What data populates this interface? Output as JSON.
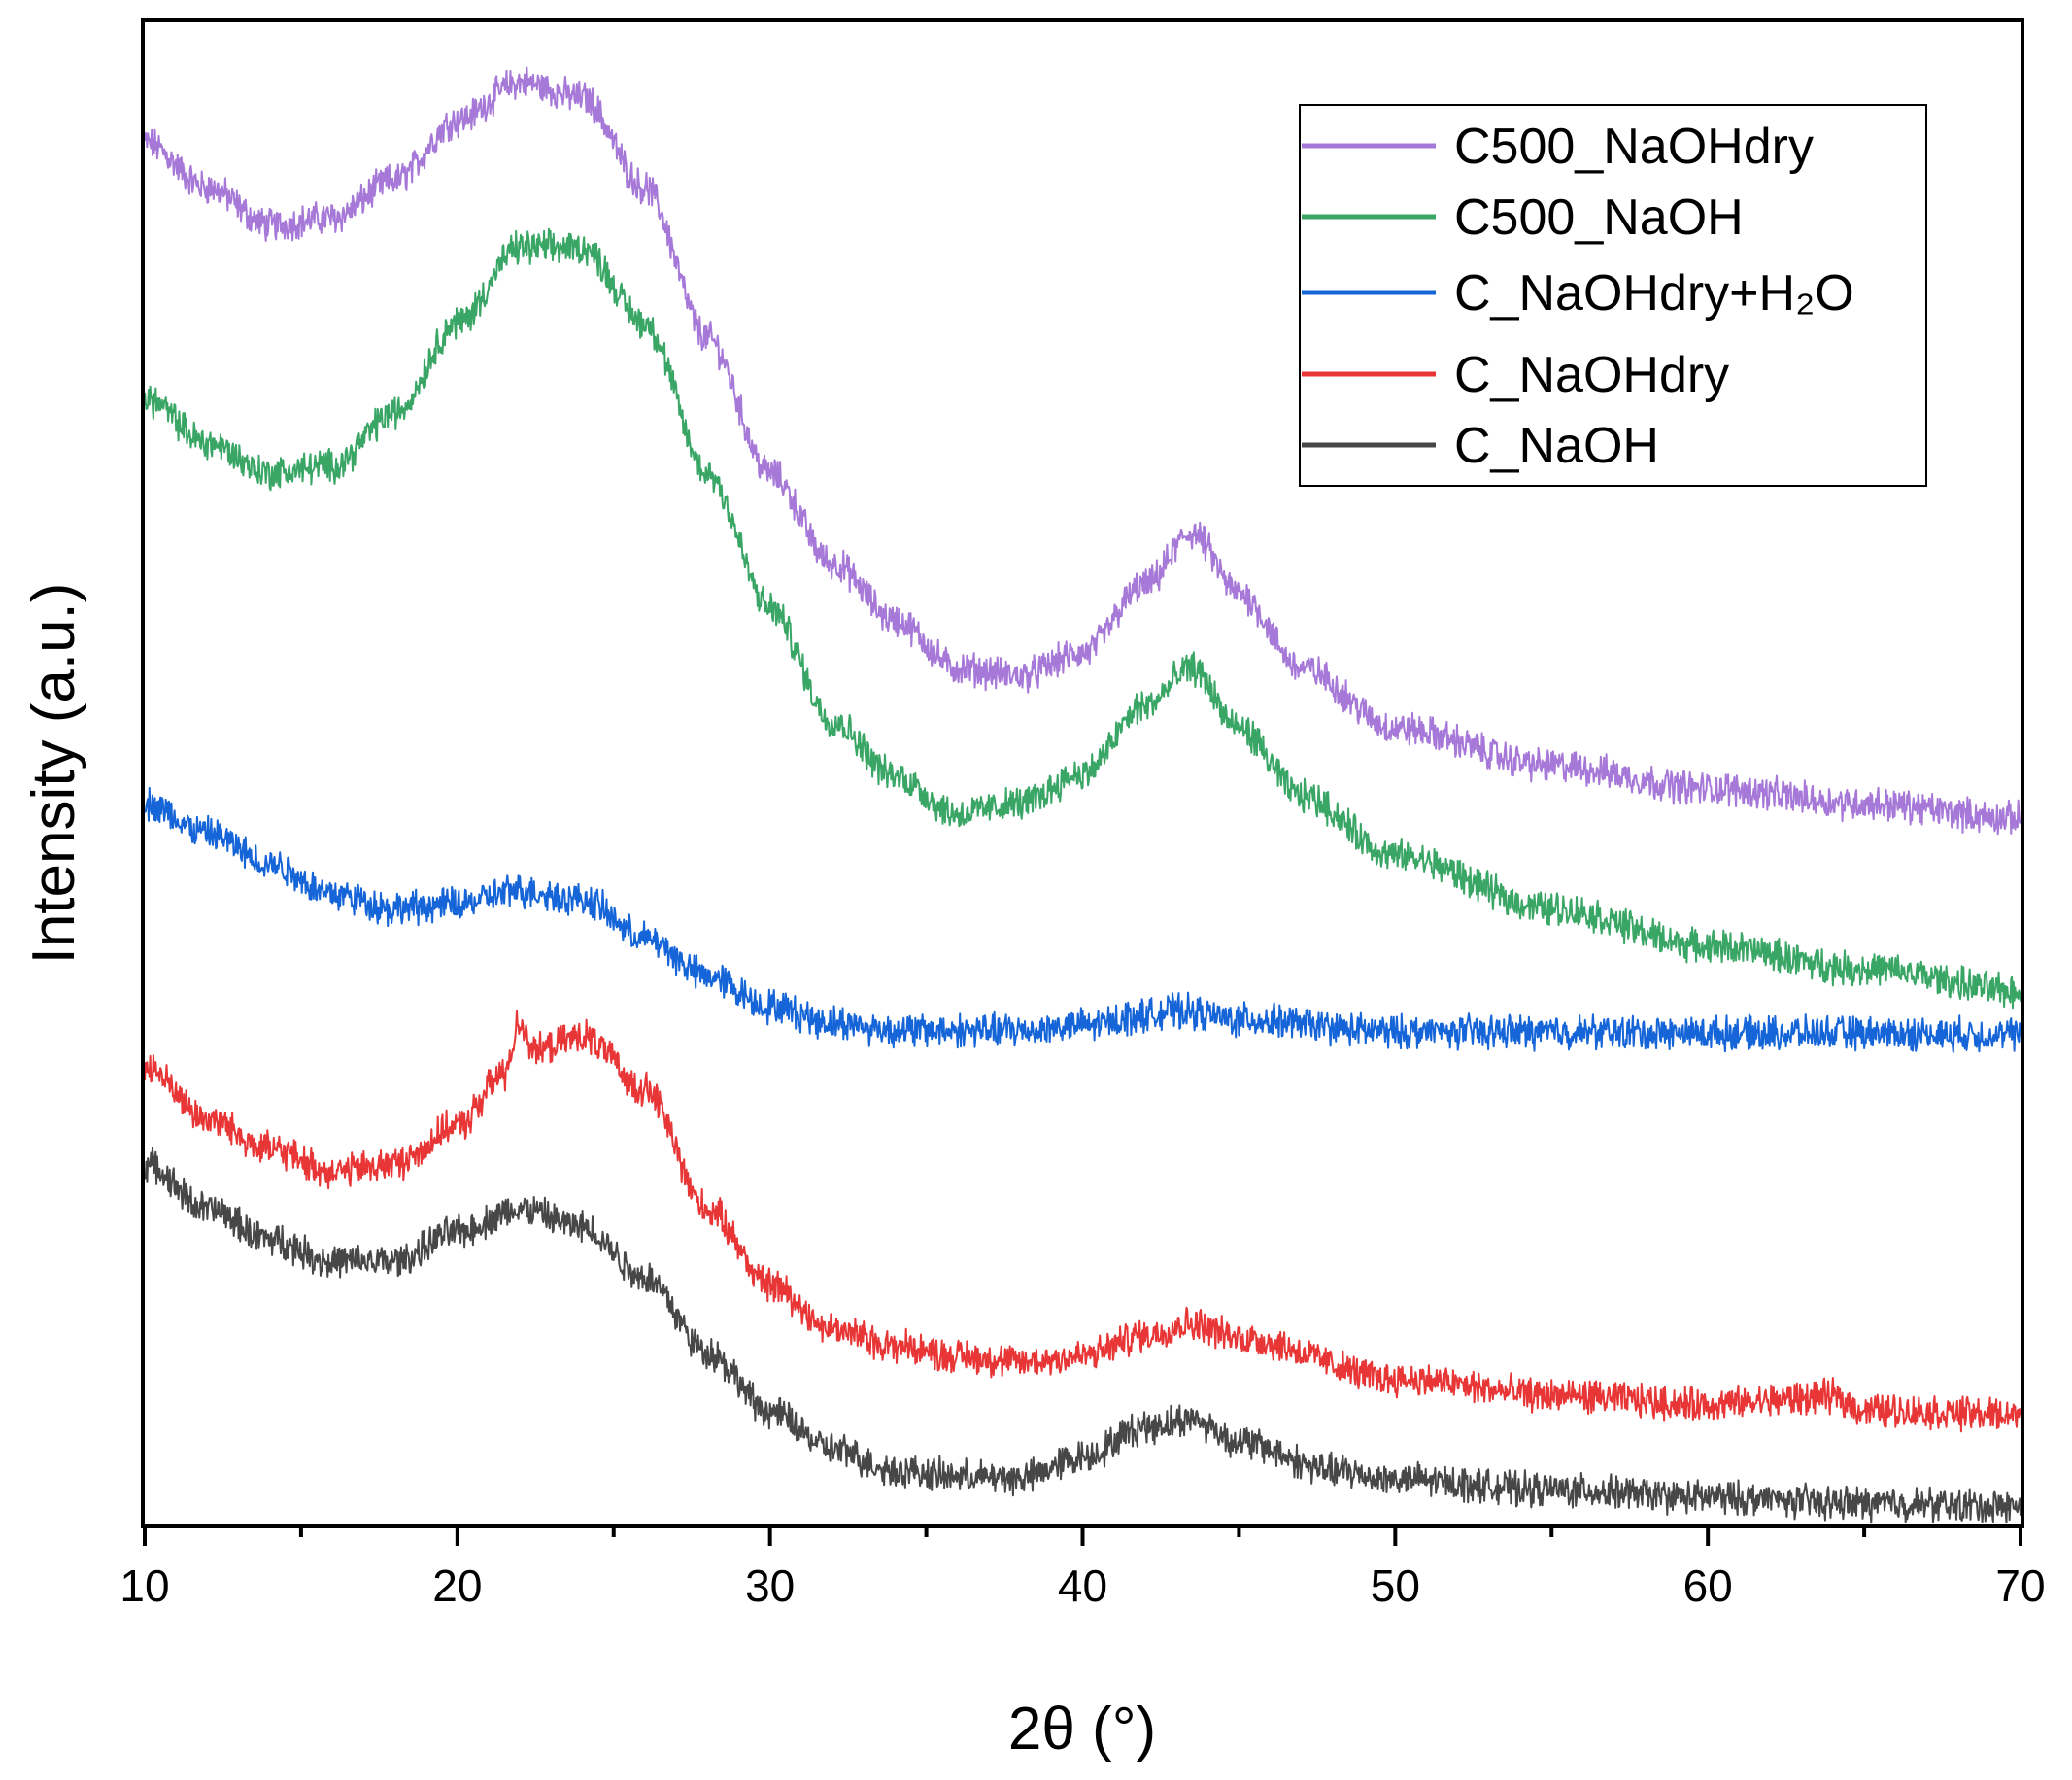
{
  "chart_data": {
    "type": "line",
    "title": "",
    "xlabel": "2θ (°)",
    "ylabel": "Intensity (a.u.)",
    "xlim": [
      10,
      70
    ],
    "ylim": [
      0,
      100
    ],
    "xticks": [
      10,
      20,
      30,
      40,
      50,
      60,
      70
    ],
    "yticks_shown": false,
    "legend_position": "top-right",
    "series": [
      {
        "name": "C500_NaOHdry",
        "color": "#a678d8",
        "points": [
          [
            10,
            92
          ],
          [
            12,
            89
          ],
          [
            14,
            86.5
          ],
          [
            16,
            87
          ],
          [
            18,
            89.5
          ],
          [
            20,
            93.5
          ],
          [
            22,
            96
          ],
          [
            24,
            95
          ],
          [
            26,
            89
          ],
          [
            28,
            79
          ],
          [
            30,
            70
          ],
          [
            32,
            64
          ],
          [
            34,
            60.2
          ],
          [
            36,
            57
          ],
          [
            38,
            56.5
          ],
          [
            40,
            58
          ],
          [
            42,
            62.5
          ],
          [
            43.5,
            66
          ],
          [
            45,
            62
          ],
          [
            47,
            57
          ],
          [
            50,
            53
          ],
          [
            55,
            50.5
          ],
          [
            60,
            49
          ],
          [
            65,
            48
          ],
          [
            70,
            47
          ]
        ]
      },
      {
        "name": "C500_NaOH",
        "color": "#3aa666",
        "points": [
          [
            10,
            75
          ],
          [
            12,
            72
          ],
          [
            14,
            70
          ],
          [
            16,
            70.5
          ],
          [
            18,
            74
          ],
          [
            20,
            80
          ],
          [
            22,
            85
          ],
          [
            24,
            85
          ],
          [
            26,
            80
          ],
          [
            28,
            70
          ],
          [
            30,
            61
          ],
          [
            32,
            53.5
          ],
          [
            34,
            49.8
          ],
          [
            36,
            47.3
          ],
          [
            38,
            48
          ],
          [
            40,
            50
          ],
          [
            42,
            54.5
          ],
          [
            43.5,
            57
          ],
          [
            45,
            53
          ],
          [
            47,
            48.5
          ],
          [
            50,
            44.5
          ],
          [
            55,
            41
          ],
          [
            60,
            38.5
          ],
          [
            65,
            37
          ],
          [
            70,
            35.5
          ]
        ]
      },
      {
        "name": "C_NaOHdry+H₂O",
        "color": "#1565d8",
        "points": [
          [
            10,
            48
          ],
          [
            12,
            46
          ],
          [
            14,
            44
          ],
          [
            16,
            42
          ],
          [
            18,
            41
          ],
          [
            20,
            41.3
          ],
          [
            22,
            42.2
          ],
          [
            24,
            41.6
          ],
          [
            26,
            39
          ],
          [
            28,
            36.5
          ],
          [
            30,
            34.5
          ],
          [
            32,
            33.4
          ],
          [
            34,
            32.9
          ],
          [
            36,
            32.9
          ],
          [
            38,
            32.9
          ],
          [
            40,
            33.2
          ],
          [
            42,
            33.9
          ],
          [
            43,
            34.2
          ],
          [
            45,
            33.6
          ],
          [
            50,
            32.8
          ],
          [
            55,
            32.8
          ],
          [
            60,
            32.7
          ],
          [
            65,
            32.7
          ],
          [
            70,
            32.6
          ]
        ]
      },
      {
        "name": "C_NaOHdry",
        "color": "#e83535",
        "points": [
          [
            10,
            30.5
          ],
          [
            12,
            27
          ],
          [
            14,
            25
          ],
          [
            16,
            23.5
          ],
          [
            18,
            24
          ],
          [
            20,
            26.5
          ],
          [
            21.5,
            30
          ],
          [
            22,
            33.5
          ],
          [
            22.5,
            31.5
          ],
          [
            24,
            32.5
          ],
          [
            26,
            29
          ],
          [
            28,
            21
          ],
          [
            30,
            16
          ],
          [
            32,
            13
          ],
          [
            34,
            11.9
          ],
          [
            36,
            11.2
          ],
          [
            38,
            10.8
          ],
          [
            40,
            11.2
          ],
          [
            42,
            12.6
          ],
          [
            43.5,
            13.4
          ],
          [
            45,
            12.4
          ],
          [
            50,
            9.7
          ],
          [
            55,
            8.6
          ],
          [
            60,
            8
          ],
          [
            64,
            8.5
          ],
          [
            65,
            7.6
          ],
          [
            70,
            7.3
          ]
        ]
      },
      {
        "name": "C_NaOH",
        "color": "#474747",
        "points": [
          [
            10,
            24
          ],
          [
            12,
            21
          ],
          [
            14,
            19
          ],
          [
            16,
            17.5
          ],
          [
            18,
            17.5
          ],
          [
            20,
            19.5
          ],
          [
            22,
            21
          ],
          [
            24,
            19.8
          ],
          [
            26,
            16.5
          ],
          [
            28,
            11.5
          ],
          [
            30,
            7.5
          ],
          [
            32,
            5
          ],
          [
            34,
            3.6
          ],
          [
            36,
            3.2
          ],
          [
            38,
            3.1
          ],
          [
            40,
            4.5
          ],
          [
            42,
            6.5
          ],
          [
            43.5,
            7
          ],
          [
            45,
            5.5
          ],
          [
            48,
            3.6
          ],
          [
            50,
            3
          ],
          [
            55,
            2.3
          ],
          [
            60,
            1.8
          ],
          [
            65,
            1.4
          ],
          [
            70,
            1.2
          ]
        ]
      }
    ]
  }
}
